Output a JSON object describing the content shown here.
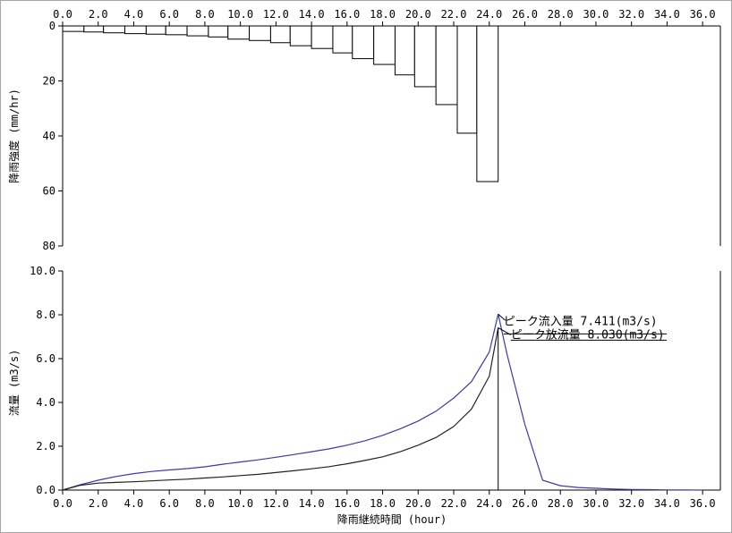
{
  "chart_data": [
    {
      "type": "bar",
      "ylabel": "降雨強度 (mm/hr)",
      "x_ticks": [
        "0.0",
        "2.0",
        "4.0",
        "6.0",
        "8.0",
        "10.0",
        "12.0",
        "14.0",
        "16.0",
        "18.0",
        "20.0",
        "22.0",
        "24.0",
        "26.0",
        "28.0",
        "30.0",
        "32.0",
        "34.0",
        "36.0"
      ],
      "y_ticks": [
        "0",
        "20",
        "40",
        "60",
        "80"
      ],
      "xlim": [
        0,
        37
      ],
      "ylim": [
        0,
        80
      ],
      "y_inverted": true,
      "x_axis_position": "top",
      "bars": [
        {
          "x0": 0,
          "x1": 1.2,
          "value": 2.0
        },
        {
          "x0": 1.2,
          "x1": 2.3,
          "value": 2.2
        },
        {
          "x0": 2.3,
          "x1": 3.5,
          "value": 2.5
        },
        {
          "x0": 3.5,
          "x1": 4.7,
          "value": 2.8
        },
        {
          "x0": 4.7,
          "x1": 5.8,
          "value": 3.0
        },
        {
          "x0": 5.8,
          "x1": 7.0,
          "value": 3.2
        },
        {
          "x0": 7.0,
          "x1": 8.2,
          "value": 3.6
        },
        {
          "x0": 8.2,
          "x1": 9.3,
          "value": 4.0
        },
        {
          "x0": 9.3,
          "x1": 10.5,
          "value": 4.8
        },
        {
          "x0": 10.5,
          "x1": 11.7,
          "value": 5.3
        },
        {
          "x0": 11.7,
          "x1": 12.8,
          "value": 6.1
        },
        {
          "x0": 12.8,
          "x1": 14.0,
          "value": 7.2
        },
        {
          "x0": 14.0,
          "x1": 15.2,
          "value": 8.2
        },
        {
          "x0": 15.2,
          "x1": 16.3,
          "value": 9.8
        },
        {
          "x0": 16.3,
          "x1": 17.5,
          "value": 11.9
        },
        {
          "x0": 17.5,
          "x1": 18.7,
          "value": 14.0
        },
        {
          "x0": 18.7,
          "x1": 19.8,
          "value": 17.8
        },
        {
          "x0": 19.8,
          "x1": 21.0,
          "value": 22.1
        },
        {
          "x0": 21.0,
          "x1": 22.2,
          "value": 28.6
        },
        {
          "x0": 22.2,
          "x1": 23.3,
          "value": 39.0
        },
        {
          "x0": 23.3,
          "x1": 24.5,
          "value": 56.6
        }
      ]
    },
    {
      "type": "line",
      "xlabel": "降雨継続時間 (hour)",
      "ylabel": "流量 (m3/s)",
      "x_ticks": [
        "0.0",
        "2.0",
        "4.0",
        "6.0",
        "8.0",
        "10.0",
        "12.0",
        "14.0",
        "16.0",
        "18.0",
        "20.0",
        "22.0",
        "24.0",
        "26.0",
        "28.0",
        "30.0",
        "32.0",
        "34.0",
        "36.0"
      ],
      "y_ticks": [
        "0.0",
        "2.0",
        "4.0",
        "6.0",
        "8.0",
        "10.0"
      ],
      "xlim": [
        0,
        37
      ],
      "ylim": [
        0,
        10
      ],
      "series": [
        {
          "color": "#3a3aa8",
          "x": [
            0,
            1,
            2,
            3,
            4,
            5,
            6,
            7,
            8,
            9,
            10,
            11,
            12,
            13,
            14,
            15,
            16,
            17,
            18,
            19,
            20,
            21,
            22,
            23,
            24,
            24.5,
            25,
            26,
            27,
            28,
            29,
            30,
            31,
            32,
            33,
            34,
            35,
            36
          ],
          "y": [
            0.0,
            0.25,
            0.45,
            0.62,
            0.75,
            0.85,
            0.92,
            0.98,
            1.06,
            1.18,
            1.28,
            1.38,
            1.5,
            1.62,
            1.75,
            1.88,
            2.05,
            2.25,
            2.5,
            2.8,
            3.15,
            3.6,
            4.2,
            4.95,
            6.3,
            8.03,
            6.2,
            3.0,
            0.45,
            0.2,
            0.12,
            0.08,
            0.05,
            0.03,
            0.02,
            0.01,
            0.01,
            0.0
          ]
        },
        {
          "color": "#222222",
          "x": [
            0,
            1,
            2,
            3,
            4,
            5,
            6,
            7,
            8,
            9,
            10,
            11,
            12,
            13,
            14,
            15,
            16,
            17,
            18,
            19,
            20,
            21,
            22,
            23,
            24,
            24.5
          ],
          "y": [
            0.0,
            0.22,
            0.32,
            0.35,
            0.38,
            0.42,
            0.46,
            0.5,
            0.55,
            0.6,
            0.66,
            0.72,
            0.8,
            0.88,
            0.97,
            1.07,
            1.2,
            1.35,
            1.52,
            1.75,
            2.05,
            2.4,
            2.9,
            3.7,
            5.2,
            7.41
          ]
        }
      ],
      "annotations": [
        {
          "text": "ピーク流入量 7.411(m3/s)",
          "x": 24.5,
          "y": 7.411
        },
        {
          "text": "ピーク放流量 8.030(m3/s)",
          "x": 24.5,
          "y": 8.03
        }
      ],
      "peak_x": 24.5
    }
  ]
}
